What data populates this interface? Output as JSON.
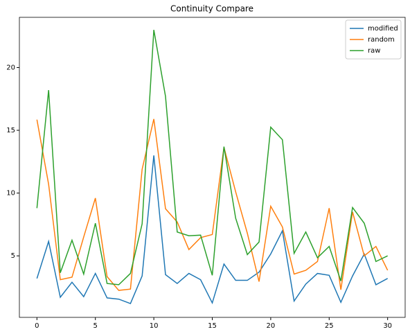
{
  "chart_data": {
    "type": "line",
    "title": "Continuity Compare",
    "x": [
      0,
      1,
      2,
      3,
      4,
      5,
      6,
      7,
      8,
      9,
      10,
      11,
      12,
      13,
      14,
      15,
      16,
      17,
      18,
      19,
      20,
      21,
      22,
      23,
      24,
      25,
      26,
      27,
      28,
      29,
      30
    ],
    "series": [
      {
        "name": "modified",
        "color": "#1f77b4",
        "values": [
          3.2,
          6.15,
          1.7,
          2.9,
          1.75,
          3.6,
          1.65,
          1.55,
          1.2,
          3.4,
          13.0,
          3.5,
          2.8,
          3.6,
          3.1,
          1.25,
          4.35,
          3.05,
          3.05,
          3.7,
          5.15,
          7.0,
          1.4,
          2.75,
          3.6,
          3.45,
          1.3,
          3.4,
          5.15,
          2.7,
          3.2
        ]
      },
      {
        "name": "random",
        "color": "#ff7f0e",
        "values": [
          15.85,
          10.7,
          3.1,
          3.3,
          6.5,
          9.6,
          3.35,
          2.25,
          2.35,
          11.9,
          15.9,
          8.75,
          7.7,
          5.5,
          6.45,
          6.7,
          13.65,
          10.1,
          6.8,
          2.95,
          8.95,
          7.3,
          3.55,
          3.85,
          4.55,
          8.8,
          2.3,
          8.5,
          5.0,
          5.75,
          3.85
        ]
      },
      {
        "name": "raw",
        "color": "#2ca02c",
        "values": [
          8.8,
          18.2,
          3.65,
          6.25,
          3.55,
          7.6,
          2.8,
          2.7,
          3.6,
          7.55,
          23.0,
          17.7,
          6.9,
          6.6,
          6.65,
          3.45,
          13.7,
          8.0,
          5.1,
          6.1,
          15.25,
          14.25,
          5.2,
          6.9,
          4.85,
          5.75,
          3.0,
          8.85,
          7.6,
          4.55,
          5.0
        ]
      }
    ],
    "xlim": [
      -1.5,
      31.5
    ],
    "xticks": [
      0,
      5,
      10,
      15,
      20,
      25,
      30
    ],
    "ylim": [
      0.1,
      24.0
    ],
    "yticks": [
      5,
      10,
      15,
      20
    ],
    "legend": "upper-right"
  }
}
